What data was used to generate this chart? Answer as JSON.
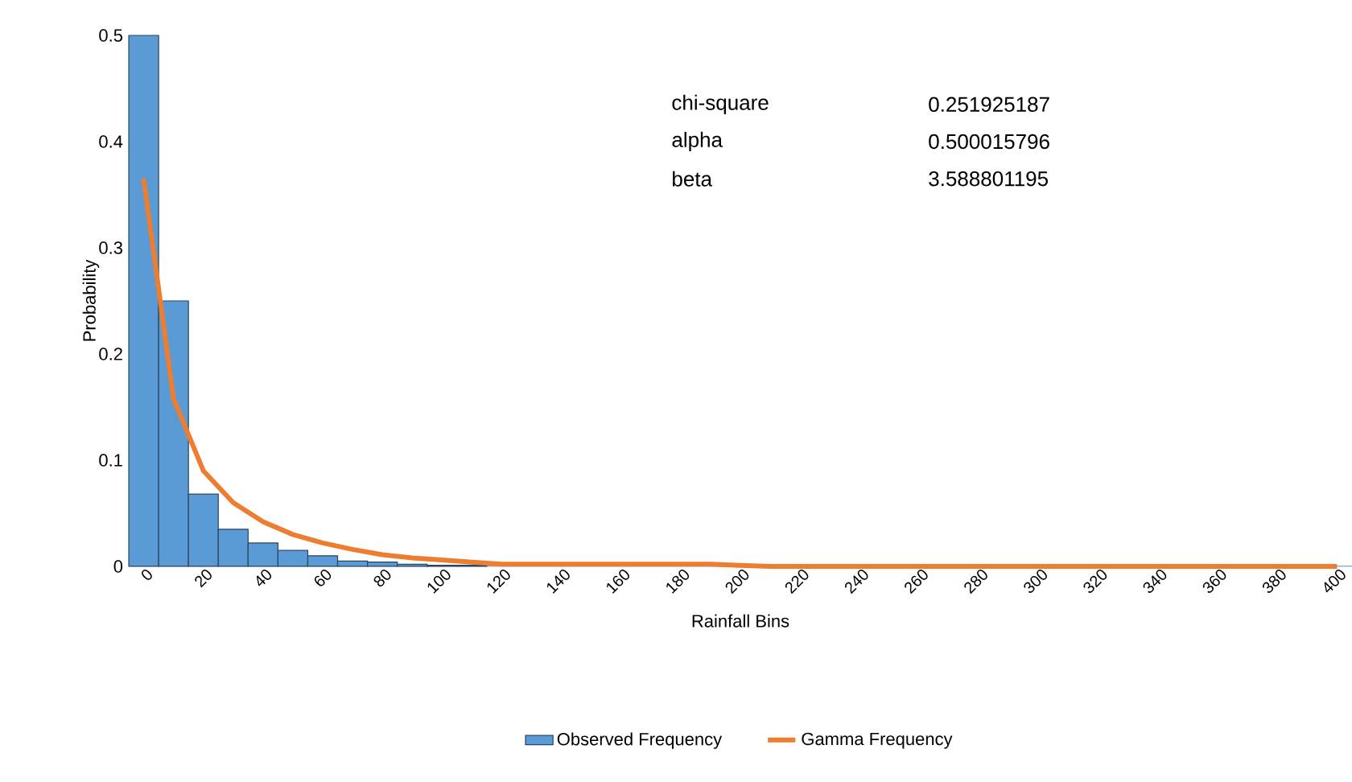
{
  "chart_data": {
    "type": "bar",
    "xlabel": "Rainfall Bins",
    "ylabel": "Probability",
    "categories": [
      "0",
      null,
      "20",
      null,
      "40",
      null,
      "60",
      null,
      "80",
      null,
      "100",
      null,
      "120",
      null,
      "140",
      null,
      "160",
      null,
      "180",
      null,
      "200",
      null,
      "220",
      null,
      "240",
      null,
      "260",
      null,
      "280",
      null,
      "300",
      null,
      "320",
      null,
      "340",
      null,
      "360",
      null,
      "380",
      null,
      "400"
    ],
    "series": [
      {
        "name": "Observed Frequency",
        "color": "#5b9bd5",
        "values": [
          0.5,
          0.25,
          0.068,
          0.035,
          0.022,
          0.015,
          0.01,
          0.005,
          0.004,
          0.002,
          0.001,
          0.001,
          0,
          0,
          0,
          0,
          0,
          0,
          0,
          0,
          0.001,
          0,
          0,
          0,
          0,
          0,
          0,
          0,
          0,
          0,
          0,
          0,
          0,
          0,
          0,
          0,
          0,
          0,
          0,
          0,
          0
        ]
      },
      {
        "name": "Gamma Frequency",
        "type": "line",
        "color": "#ed7d31",
        "values": [
          0.365,
          0.158,
          0.09,
          0.06,
          0.042,
          0.03,
          0.022,
          0.016,
          0.011,
          0.008,
          0.006,
          0.004,
          0.002,
          0.002,
          0.002,
          0.002,
          0.002,
          0.002,
          0.002,
          0.002,
          0.001,
          0,
          0,
          0,
          0,
          0,
          0,
          0,
          0,
          0,
          0,
          0,
          0,
          0,
          0,
          0,
          0,
          0,
          0,
          0,
          0
        ]
      }
    ],
    "ylim": [
      0,
      0.5
    ],
    "yticks": [
      0,
      0.1,
      0.2,
      0.3,
      0.4,
      0.5
    ],
    "legend": "bottom",
    "grid": false,
    "annotations": [
      "chi-square",
      "0.251925187",
      "alpha",
      "0.500015796",
      "beta",
      "3.588801195"
    ]
  }
}
